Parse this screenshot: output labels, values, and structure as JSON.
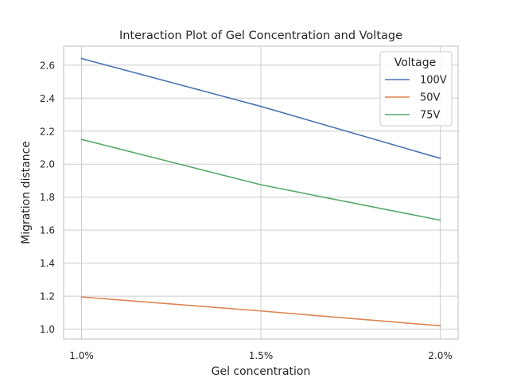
{
  "chart_data": {
    "type": "line",
    "title": "Interaction Plot of Gel Concentration and Voltage",
    "xlabel": "Gel concentration",
    "ylabel": "Migration distance",
    "categories": [
      "1.0%",
      "1.5%",
      "2.0%"
    ],
    "ylim": [
      0.94,
      2.715
    ],
    "yticks": [
      1.0,
      1.2,
      1.4,
      1.6,
      1.8,
      2.0,
      2.2,
      2.4,
      2.6
    ],
    "grid": true,
    "legend": {
      "title": "Voltage",
      "placement": "top-right"
    },
    "series": [
      {
        "name": "100V",
        "color": "#4c72b0",
        "values": [
          2.64,
          2.35,
          2.035
        ]
      },
      {
        "name": "50V",
        "color": "#dd8452",
        "values": [
          1.195,
          1.11,
          1.02
        ]
      },
      {
        "name": "75V",
        "color": "#55a868",
        "values": [
          2.15,
          1.875,
          1.66
        ]
      }
    ]
  }
}
